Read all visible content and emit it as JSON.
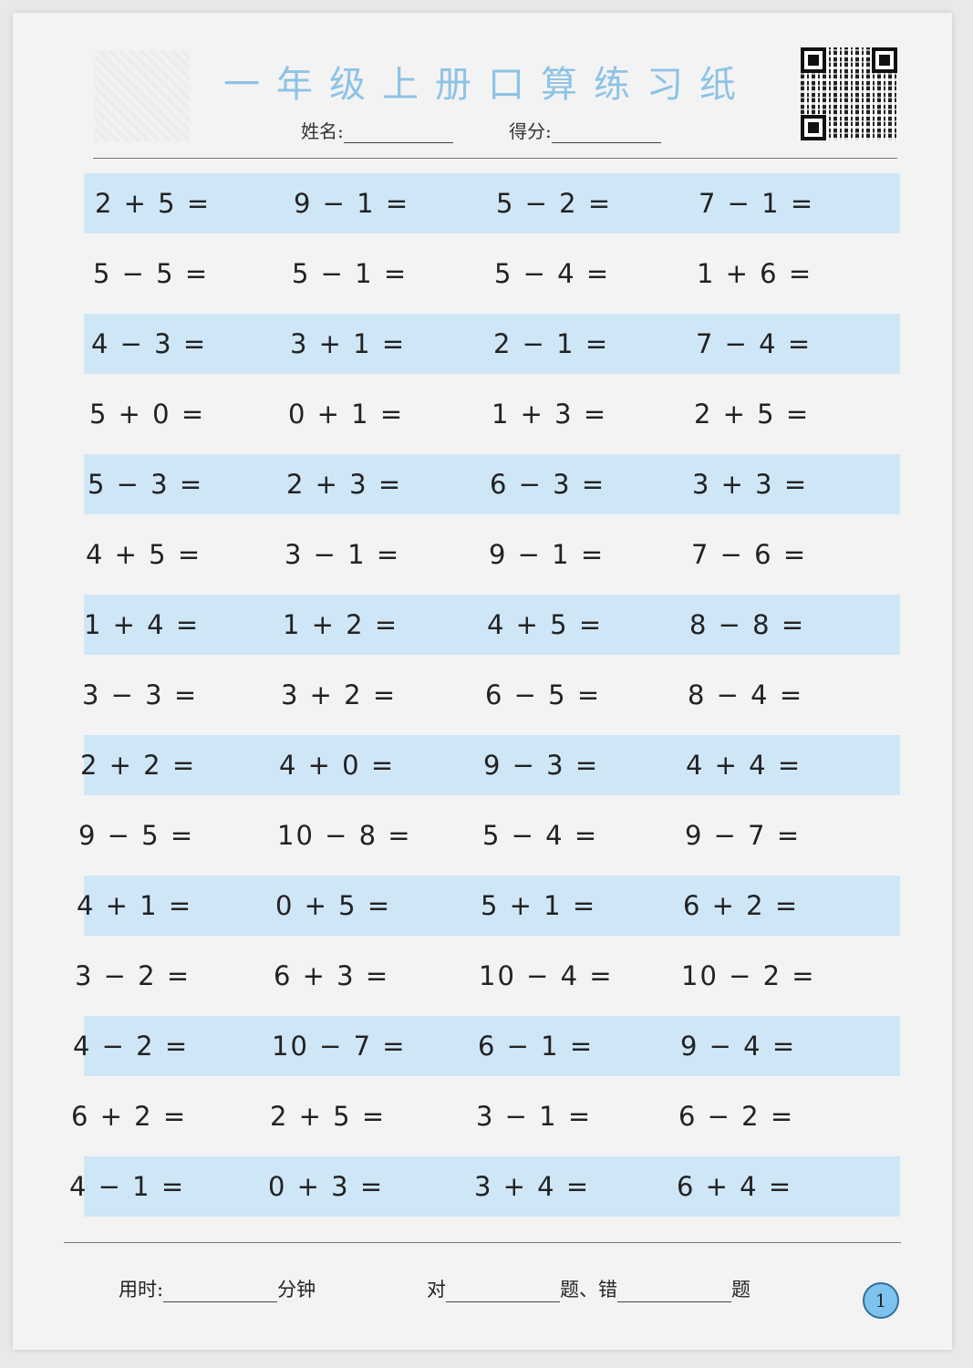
{
  "header": {
    "title": "一年级上册口算练习纸",
    "name_label": "姓名:",
    "score_label": "得分:"
  },
  "problems": [
    [
      "2 + 5 =",
      "9 − 1 =",
      "5 − 2 =",
      "7 − 1 ="
    ],
    [
      "5 − 5 =",
      "5 − 1 =",
      "5 − 4 =",
      "1 + 6 ="
    ],
    [
      "4 − 3 =",
      "3 + 1 =",
      "2 − 1 =",
      "7 − 4 ="
    ],
    [
      "5 + 0 =",
      "0 + 1 =",
      "1 + 3 =",
      "2 + 5 ="
    ],
    [
      "5 − 3 =",
      "2 + 3 =",
      "6 − 3 =",
      "3 + 3 ="
    ],
    [
      "4 + 5 =",
      "3 − 1 =",
      "9 − 1 =",
      "7 − 6 ="
    ],
    [
      "1 + 4 =",
      "1 + 2 =",
      "4 + 5 =",
      "8 − 8 ="
    ],
    [
      "3 − 3 =",
      "3 + 2 =",
      "6 − 5 =",
      "8 − 4 ="
    ],
    [
      "2 + 2 =",
      "4 + 0 =",
      "9 − 3 =",
      "4 + 4 ="
    ],
    [
      "9 − 5 =",
      "10 − 8 =",
      "5 − 4 =",
      "9 − 7 ="
    ],
    [
      "4 + 1 =",
      "0 + 5 =",
      "5 + 1 =",
      "6 + 2 ="
    ],
    [
      "3 − 2 =",
      "6 + 3 =",
      "10 − 4 =",
      "10 − 2 ="
    ],
    [
      "4 − 2 =",
      "10 − 7 =",
      "6 − 1 =",
      "9 − 4 ="
    ],
    [
      "6 + 2 =",
      "2 + 5 =",
      "3 − 1 =",
      "6 − 2 ="
    ],
    [
      "4 − 1 =",
      "0 + 3 =",
      "3 + 4 =",
      "6 + 4 ="
    ]
  ],
  "footer": {
    "time_label": "用时:",
    "minutes_label": "分钟",
    "correct_label": "对",
    "questions_wrong_label": "题、错",
    "questions_label": "题",
    "page_number": "1"
  },
  "colors": {
    "title": "#8cc3e6",
    "band": "#cfe6f7",
    "page_badge": "#7cc4ee"
  }
}
